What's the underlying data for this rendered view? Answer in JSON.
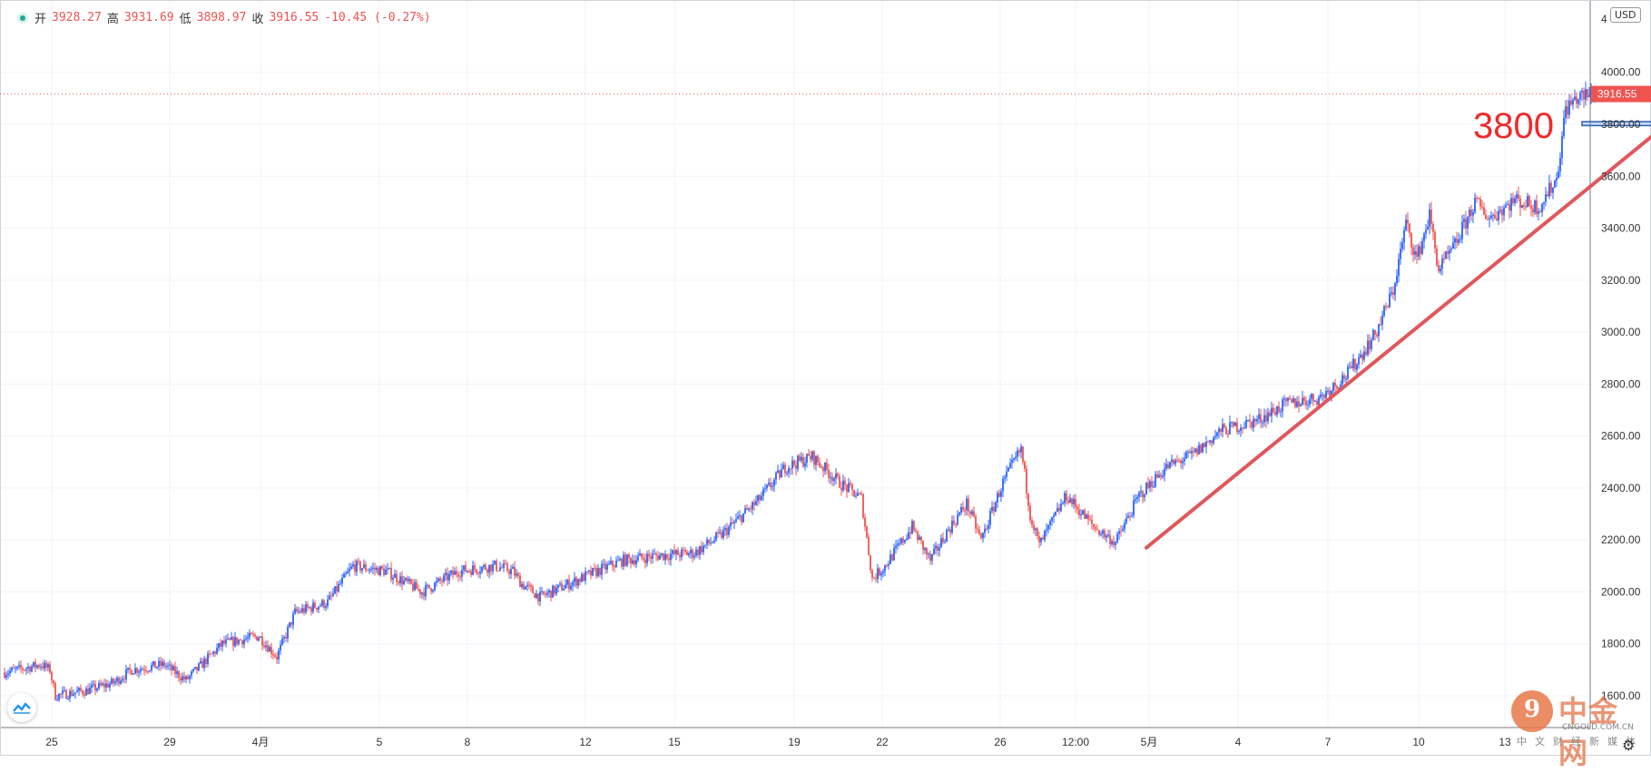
{
  "legend": {
    "open_label": "开",
    "open": "3928.27",
    "high_label": "高",
    "high": "3931.69",
    "low_label": "低",
    "low": "3898.97",
    "close_label": "收",
    "close": "3916.55",
    "change": "-10.45 (-0.27%)"
  },
  "currency": "USD",
  "colors": {
    "up": "#2962ff",
    "down": "#ef5350",
    "trend": "#e0575c",
    "label": "#ef2a2a",
    "price_tag": "#ef5350"
  },
  "annotation": {
    "text": "3800",
    "level": 3800
  },
  "last_price": {
    "value": 3916.55,
    "label": "3916.55"
  },
  "watermark": {
    "main": "中金网",
    "url": "CNGOLD.COM.CN",
    "sub": "中文财经新媒体",
    "glyph": "9"
  },
  "icons": [
    "tradingview-logo-icon",
    "gear-icon"
  ],
  "chart_data": {
    "type": "candlestick",
    "y_axis": {
      "min": 1600,
      "max": 4200,
      "ticks": [
        1600,
        1800,
        2000,
        2200,
        2400,
        2600,
        2800,
        3000,
        3200,
        3400,
        3600,
        3800,
        4000
      ],
      "tick_labels": [
        "1600.00",
        "1800.00",
        "2000.00",
        "2200.00",
        "2400.00",
        "2600.00",
        "2800.00",
        "3000.00",
        "3200.00",
        "3400.00",
        "3600.00",
        "3800.00",
        "4000.00"
      ],
      "top_partial_label": "4"
    },
    "x_axis": {
      "tick_labels": [
        "25",
        "29",
        "4月",
        "5",
        "8",
        "12",
        "15",
        "19",
        "22",
        "26",
        "12:00",
        "5月",
        "4",
        "7",
        "10",
        "13"
      ]
    },
    "anchors": [
      [
        0,
        1690
      ],
      [
        20,
        1720
      ],
      [
        25,
        1700
      ],
      [
        28,
        1600
      ],
      [
        45,
        1620
      ],
      [
        60,
        1650
      ],
      [
        70,
        1700
      ],
      [
        88,
        1720
      ],
      [
        100,
        1660
      ],
      [
        120,
        1800
      ],
      [
        140,
        1830
      ],
      [
        150,
        1750
      ],
      [
        160,
        1920
      ],
      [
        178,
        1960
      ],
      [
        192,
        2100
      ],
      [
        210,
        2080
      ],
      [
        230,
        2000
      ],
      [
        250,
        2080
      ],
      [
        270,
        2100
      ],
      [
        280,
        2080
      ],
      [
        285,
        2030
      ],
      [
        295,
        1980
      ],
      [
        320,
        2060
      ],
      [
        340,
        2120
      ],
      [
        360,
        2140
      ],
      [
        380,
        2150
      ],
      [
        395,
        2220
      ],
      [
        415,
        2350
      ],
      [
        430,
        2480
      ],
      [
        445,
        2520
      ],
      [
        460,
        2420
      ],
      [
        472,
        2360
      ],
      [
        478,
        2050
      ],
      [
        485,
        2100
      ],
      [
        500,
        2250
      ],
      [
        510,
        2120
      ],
      [
        520,
        2240
      ],
      [
        530,
        2340
      ],
      [
        538,
        2200
      ],
      [
        550,
        2420
      ],
      [
        560,
        2550
      ],
      [
        565,
        2300
      ],
      [
        570,
        2180
      ],
      [
        585,
        2370
      ],
      [
        600,
        2250
      ],
      [
        612,
        2190
      ],
      [
        625,
        2370
      ],
      [
        640,
        2480
      ],
      [
        655,
        2530
      ],
      [
        670,
        2620
      ],
      [
        690,
        2660
      ],
      [
        705,
        2720
      ],
      [
        725,
        2750
      ],
      [
        740,
        2840
      ],
      [
        755,
        2990
      ],
      [
        765,
        3160
      ],
      [
        772,
        3420
      ],
      [
        778,
        3280
      ],
      [
        785,
        3450
      ],
      [
        790,
        3240
      ],
      [
        798,
        3320
      ],
      [
        810,
        3500
      ],
      [
        818,
        3440
      ],
      [
        832,
        3510
      ],
      [
        845,
        3480
      ],
      [
        855,
        3590
      ],
      [
        860,
        3860
      ],
      [
        866,
        3900
      ],
      [
        875,
        3915
      ]
    ],
    "trendline": {
      "start": {
        "bar": 629,
        "price": 2170
      },
      "end": {
        "bar": 935,
        "price": 3910
      }
    },
    "level_box": {
      "start_bar": 869,
      "end_bar": 930,
      "price_top": 3810,
      "price_bottom": 3795
    }
  }
}
